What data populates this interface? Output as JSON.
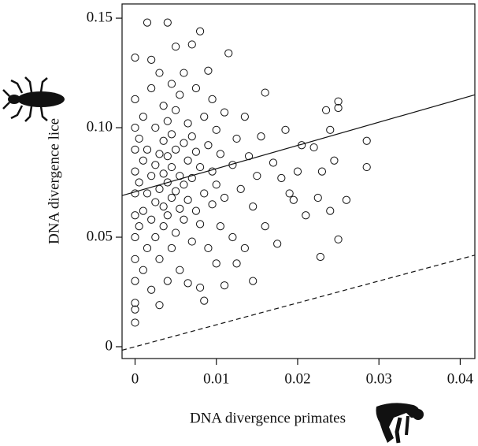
{
  "chart_data": {
    "type": "scatter",
    "xlabel": "DNA divergence primates",
    "ylabel": "DNA divergence lice",
    "xlim": [
      -0.0016,
      0.0418
    ],
    "ylim": [
      -0.0054,
      0.1565
    ],
    "xticks": [
      0,
      0.01,
      0.02,
      0.03,
      0.04
    ],
    "yticks": [
      0,
      0.05,
      {
        "value": 0.1,
        "label": "0.10"
      },
      0.15
    ],
    "color": "#111111",
    "x": [
      0,
      0,
      0,
      0,
      0,
      0,
      0,
      0,
      0,
      0,
      0,
      0,
      0,
      0.0005,
      0.0005,
      0.0005,
      0.001,
      0.001,
      0.001,
      0.001,
      0.0015,
      0.0015,
      0.0015,
      0.0015,
      0.002,
      0.002,
      0.002,
      0.002,
      0.002,
      0.0025,
      0.0025,
      0.0025,
      0.0025,
      0.003,
      0.003,
      0.003,
      0.003,
      0.003,
      0.0035,
      0.0035,
      0.0035,
      0.0035,
      0.0035,
      0.004,
      0.004,
      0.004,
      0.004,
      0.004,
      0.004,
      0.0045,
      0.0045,
      0.0045,
      0.0045,
      0.0045,
      0.005,
      0.005,
      0.005,
      0.005,
      0.005,
      0.0055,
      0.0055,
      0.0055,
      0.0055,
      0.006,
      0.006,
      0.006,
      0.006,
      0.0065,
      0.0065,
      0.0065,
      0.0065,
      0.007,
      0.007,
      0.007,
      0.007,
      0.0075,
      0.0075,
      0.0075,
      0.008,
      0.008,
      0.008,
      0.008,
      0.0085,
      0.0085,
      0.0085,
      0.009,
      0.009,
      0.009,
      0.0095,
      0.0095,
      0.0095,
      0.01,
      0.01,
      0.01,
      0.0105,
      0.0105,
      0.011,
      0.011,
      0.011,
      0.0115,
      0.012,
      0.012,
      0.0125,
      0.0125,
      0.013,
      0.0135,
      0.0135,
      0.014,
      0.0145,
      0.0145,
      0.015,
      0.0155,
      0.016,
      0.016,
      0.017,
      0.0175,
      0.018,
      0.0185,
      0.019,
      0.0195,
      0.02,
      0.0205,
      0.021,
      0.022,
      0.0225,
      0.0228,
      0.023,
      0.0235,
      0.024,
      0.024,
      0.0245,
      0.025,
      0.025,
      0.025,
      0.026,
      0.0285,
      0.0285
    ],
    "y": [
      0.011,
      0.017,
      0.02,
      0.03,
      0.04,
      0.05,
      0.06,
      0.07,
      0.08,
      0.09,
      0.1,
      0.113,
      0.132,
      0.055,
      0.075,
      0.095,
      0.035,
      0.062,
      0.085,
      0.105,
      0.148,
      0.045,
      0.07,
      0.09,
      0.026,
      0.058,
      0.078,
      0.118,
      0.131,
      0.05,
      0.066,
      0.083,
      0.1,
      0.019,
      0.04,
      0.072,
      0.088,
      0.125,
      0.055,
      0.064,
      0.079,
      0.094,
      0.11,
      0.148,
      0.03,
      0.06,
      0.075,
      0.087,
      0.103,
      0.045,
      0.068,
      0.082,
      0.097,
      0.12,
      0.137,
      0.052,
      0.071,
      0.09,
      0.108,
      0.035,
      0.063,
      0.078,
      0.115,
      0.058,
      0.074,
      0.093,
      0.125,
      0.029,
      0.067,
      0.085,
      0.102,
      0.138,
      0.048,
      0.077,
      0.096,
      0.062,
      0.089,
      0.118,
      0.144,
      0.027,
      0.056,
      0.082,
      0.021,
      0.07,
      0.105,
      0.045,
      0.092,
      0.126,
      0.065,
      0.08,
      0.113,
      0.038,
      0.074,
      0.099,
      0.055,
      0.088,
      0.028,
      0.068,
      0.107,
      0.134,
      0.05,
      0.083,
      0.038,
      0.095,
      0.072,
      0.045,
      0.105,
      0.087,
      0.03,
      0.064,
      0.078,
      0.096,
      0.116,
      0.055,
      0.084,
      0.047,
      0.077,
      0.099,
      0.07,
      0.067,
      0.08,
      0.092,
      0.06,
      0.091,
      0.068,
      0.041,
      0.08,
      0.108,
      0.099,
      0.062,
      0.085,
      0.049,
      0.109,
      0.112,
      0.067,
      0.094,
      0.082
    ],
    "lines": [
      {
        "style": "solid",
        "x": [
          -0.0016,
          0.0418
        ],
        "y": [
          0.069,
          0.115
        ]
      },
      {
        "style": "dashed",
        "x": [
          -0.0016,
          0.0418
        ],
        "y": [
          -0.0016,
          0.0418
        ]
      }
    ]
  }
}
